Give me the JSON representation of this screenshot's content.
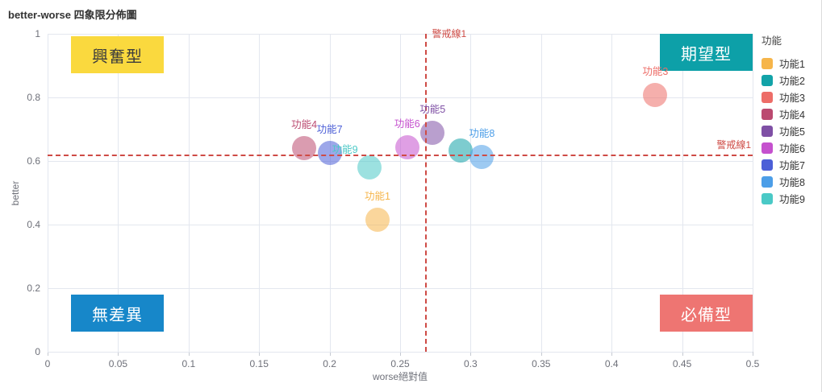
{
  "title": "better-worse 四象限分佈圖",
  "legend": {
    "title": "功能",
    "items": [
      {
        "label": "功能1",
        "color": "#F6B54A"
      },
      {
        "label": "功能2",
        "color": "#12A3A8"
      },
      {
        "label": "功能3",
        "color": "#ED6D68"
      },
      {
        "label": "功能4",
        "color": "#BB4A70"
      },
      {
        "label": "功能5",
        "color": "#7F50A5"
      },
      {
        "label": "功能6",
        "color": "#C551CE"
      },
      {
        "label": "功能7",
        "color": "#4C5FD7"
      },
      {
        "label": "功能8",
        "color": "#4C9EE8"
      },
      {
        "label": "功能9",
        "color": "#4AC9C6"
      }
    ]
  },
  "chart_data": {
    "type": "scatter",
    "title": "better-worse 四象限分佈圖",
    "xlabel": "worse絕對值",
    "ylabel": "better",
    "xlim": [
      0,
      0.5
    ],
    "ylim": [
      0,
      1
    ],
    "x_tick_values": [
      0,
      0.05,
      0.1,
      0.15,
      0.2,
      0.25,
      0.3,
      0.35,
      0.4,
      0.45,
      0.5
    ],
    "x_tick_labels": [
      "0",
      "0.05",
      "0.1",
      "0.15",
      "0.2",
      "0.25",
      "0.3",
      "0.35",
      "0.4",
      "0.45",
      "0.5"
    ],
    "y_tick_values": [
      0,
      0.2,
      0.4,
      0.6,
      0.8,
      1
    ],
    "y_tick_labels": [
      "0",
      "0.2",
      "0.4",
      "0.6",
      "0.8",
      "1"
    ],
    "grid": true,
    "legend_position": "right",
    "symbol_size": 30,
    "symbol_opacity": 0.55,
    "points": [
      {
        "name": "功能1",
        "x": 0.234,
        "y": 0.415,
        "color": "#F6B54A",
        "label": "功能1",
        "label_position": "top"
      },
      {
        "name": "功能2",
        "x": 0.293,
        "y": 0.633,
        "color": "#12A3A8",
        "label": "",
        "label_position": "none"
      },
      {
        "name": "功能3",
        "x": 0.431,
        "y": 0.808,
        "color": "#ED6D68",
        "label": "功能3",
        "label_position": "top"
      },
      {
        "name": "功能4",
        "x": 0.182,
        "y": 0.64,
        "color": "#BB4A70",
        "label": "功能4",
        "label_position": "top"
      },
      {
        "name": "功能5",
        "x": 0.273,
        "y": 0.688,
        "color": "#7F50A5",
        "label": "功能5",
        "label_position": "top"
      },
      {
        "name": "功能6",
        "x": 0.255,
        "y": 0.642,
        "color": "#C551CE",
        "label": "功能6",
        "label_position": "top"
      },
      {
        "name": "功能7",
        "x": 0.2,
        "y": 0.625,
        "color": "#4C5FD7",
        "label": "功能7",
        "label_position": "top"
      },
      {
        "name": "功能8",
        "x": 0.308,
        "y": 0.613,
        "color": "#4C9EE8",
        "label": "功能8",
        "label_position": "top"
      },
      {
        "name": "功能9",
        "x": 0.228,
        "y": 0.58,
        "color": "#4AC9C6",
        "label": "功能9",
        "label_position": "left-top"
      }
    ],
    "warning_lines": [
      {
        "label": "警戒線1",
        "orientation": "vertical",
        "value": 0.268,
        "color": "#CE4B45"
      },
      {
        "label": "警戒線1",
        "orientation": "horizontal",
        "value": 0.62,
        "color": "#CE4B45"
      }
    ],
    "quadrants": [
      {
        "text": "興奮型",
        "position": "top-left",
        "bg": "#FAD93E",
        "color": "#3d3d3d"
      },
      {
        "text": "期望型",
        "position": "top-right",
        "bg": "#0DA0A8",
        "color": "#ffffff"
      },
      {
        "text": "無差異",
        "position": "bottom-left",
        "bg": "#1787C9",
        "color": "#ffffff"
      },
      {
        "text": "必備型",
        "position": "bottom-right",
        "bg": "#EE7572",
        "color": "#ffffff"
      }
    ]
  }
}
